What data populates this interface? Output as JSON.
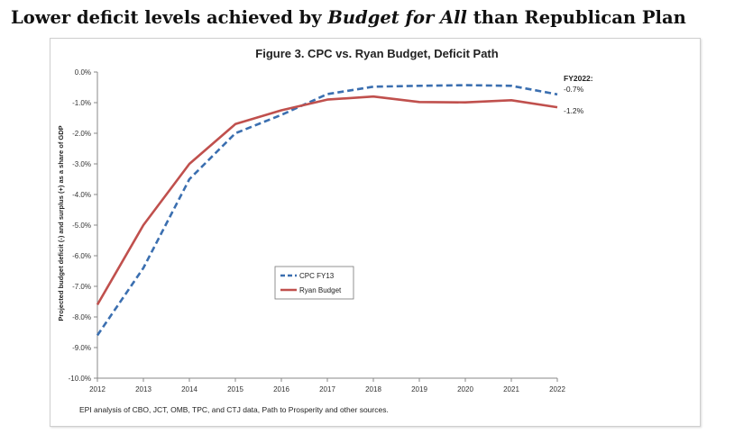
{
  "headline": {
    "part1": "Lower deficit levels achieved by ",
    "emphasis": "Budget for All",
    "part2": " than Republican Plan"
  },
  "chart_data": {
    "type": "line",
    "title": "Figure 3. CPC vs. Ryan Budget, Deficit Path",
    "xlabel": "",
    "ylabel": "Projected budget deficit (-) and surplus (+) as a share of GDP",
    "x": [
      "2012",
      "2013",
      "2014",
      "2015",
      "2016",
      "2017",
      "2018",
      "2019",
      "2020",
      "2021",
      "2022"
    ],
    "ylim": [
      -10,
      0
    ],
    "yticks": [
      "0.0%",
      "-1.0%",
      "-2.0%",
      "-3.0%",
      "-4.0%",
      "-5.0%",
      "-6.0%",
      "-7.0%",
      "-8.0%",
      "-9.0%",
      "-10.0%"
    ],
    "grid": false,
    "legend_position": "center",
    "series": [
      {
        "name": "CPC FY13",
        "style": "dashed",
        "color": "#3b6fb0",
        "values": [
          -8.6,
          -6.4,
          -3.5,
          -2.0,
          -1.4,
          -0.72,
          -0.48,
          -0.45,
          -0.43,
          -0.45,
          -0.73
        ]
      },
      {
        "name": "Ryan Budget",
        "style": "solid",
        "color": "#c0504d",
        "values": [
          -7.6,
          -5.0,
          -3.0,
          -1.7,
          -1.25,
          -0.9,
          -0.8,
          -0.98,
          -0.99,
          -0.92,
          -1.15
        ]
      }
    ],
    "annotations": {
      "header": "FY2022:",
      "cpc": "-0.7%",
      "ryan": "-1.2%"
    },
    "source": "EPI analysis of CBO, JCT, OMB, TPC, and CTJ data, Path to Prosperity and other sources."
  }
}
